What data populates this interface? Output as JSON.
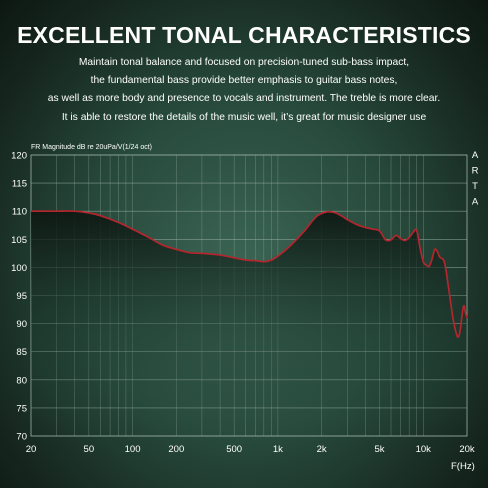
{
  "title": "EXCELLENT TONAL CHARACTERISTICS",
  "description_lines": [
    "Maintain tonal balance and focused on precision-tuned sub-bass impact,",
    "the fundamental bass provide better emphasis to guitar bass notes,",
    "as well as more body and presence to vocals and instrument. The treble is more clear.",
    "It is able to restore the details of the music well, it’s great for music designer use"
  ],
  "colors": {
    "curve": "#b3262d",
    "grid": "#9fb5aa",
    "text": "#ffffff"
  },
  "chart_data": {
    "type": "line",
    "title": "FR Magnitude dB re 20uPa/V(1/24 oct)",
    "side_label": "ARTA",
    "xlabel": "F(Hz)",
    "ylabel": "",
    "xscale": "log",
    "xlim": [
      20,
      20000
    ],
    "ylim": [
      70,
      120
    ],
    "xticks": [
      {
        "value": 20,
        "label": "20"
      },
      {
        "value": 50,
        "label": "50"
      },
      {
        "value": 100,
        "label": "100"
      },
      {
        "value": 200,
        "label": "200"
      },
      {
        "value": 500,
        "label": "500"
      },
      {
        "value": 1000,
        "label": "1k"
      },
      {
        "value": 2000,
        "label": "2k"
      },
      {
        "value": 5000,
        "label": "5k"
      },
      {
        "value": 10000,
        "label": "10k"
      },
      {
        "value": 20000,
        "label": "20k"
      }
    ],
    "yticks": [
      120,
      115,
      110,
      105,
      100,
      95,
      90,
      85,
      80,
      75,
      70
    ],
    "grid": true,
    "series": [
      {
        "x": [
          20,
          25,
          30,
          40,
          50,
          60,
          80,
          100,
          130,
          160,
          200,
          250,
          300,
          400,
          500,
          600,
          700,
          800,
          900,
          1000,
          1200,
          1500,
          1800,
          2000,
          2200,
          2500,
          2800,
          3000,
          3500,
          4000,
          4500,
          5000,
          5500,
          6000,
          6500,
          7000,
          7500,
          8000,
          8500,
          9000,
          9500,
          10000,
          10500,
          11000,
          11500,
          12000,
          12500,
          13000,
          14000,
          15000,
          16000,
          17000,
          17500,
          18000,
          18500,
          19000,
          19500,
          20000
        ],
        "values": [
          110.0,
          110.0,
          110.0,
          110.0,
          109.7,
          109.2,
          108.0,
          106.8,
          105.3,
          104.0,
          103.2,
          102.6,
          102.5,
          102.2,
          101.7,
          101.3,
          101.2,
          101.0,
          101.3,
          102.0,
          103.7,
          106.3,
          108.8,
          109.6,
          109.9,
          109.7,
          109.0,
          108.5,
          107.6,
          107.1,
          106.8,
          106.5,
          104.9,
          104.9,
          105.7,
          105.1,
          104.8,
          105.3,
          106.2,
          106.6,
          103.5,
          101.0,
          100.4,
          100.2,
          101.5,
          103.2,
          102.8,
          101.8,
          100.9,
          96.0,
          91.0,
          88.0,
          87.7,
          89.0,
          91.5,
          93.2,
          92.0,
          91.0
        ]
      }
    ]
  }
}
